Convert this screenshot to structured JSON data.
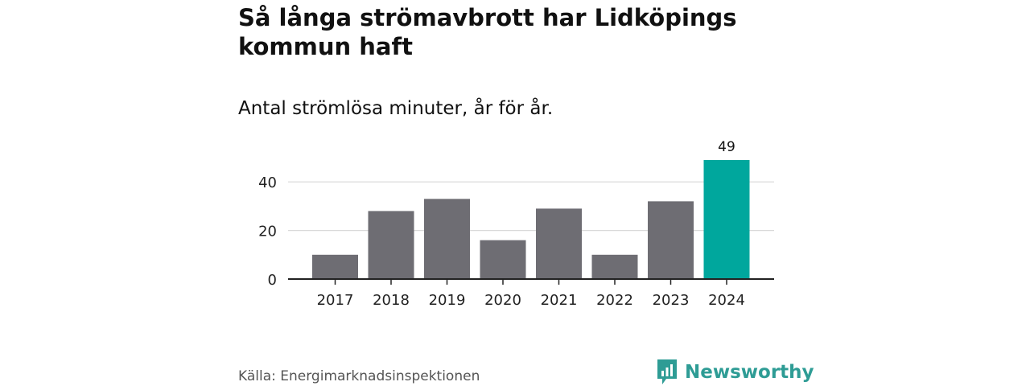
{
  "header": {
    "title": "Så långa strömavbrott har Lidköpings kommun haft",
    "subtitle": "Antal strömlösa minuter, år för år."
  },
  "chart_data": {
    "type": "bar",
    "title": "Så långa strömavbrott har Lidköpings kommun haft",
    "subtitle": "Antal strömlösa minuter, år för år.",
    "categories": [
      "2017",
      "2018",
      "2019",
      "2020",
      "2021",
      "2022",
      "2023",
      "2024"
    ],
    "values": [
      10,
      28,
      33,
      16,
      29,
      10,
      32,
      49
    ],
    "highlight_index": 7,
    "data_labels": [
      {
        "index": 7,
        "text": "49"
      }
    ],
    "yticks": [
      "0",
      "20",
      "40"
    ],
    "ylim": [
      0,
      49
    ],
    "xlabel": "",
    "ylabel": "",
    "grid": true,
    "colors": {
      "bar": "#6e6d73",
      "highlight": "#00a79d",
      "grid": "#d9d9d9",
      "axis": "#222222"
    }
  },
  "footer": {
    "source": "Källa: Energimarknadsinspektionen",
    "brand": "Newsworthy",
    "brand_icon": "newsworthy-logo-icon",
    "brand_color": "#2e9c95"
  }
}
